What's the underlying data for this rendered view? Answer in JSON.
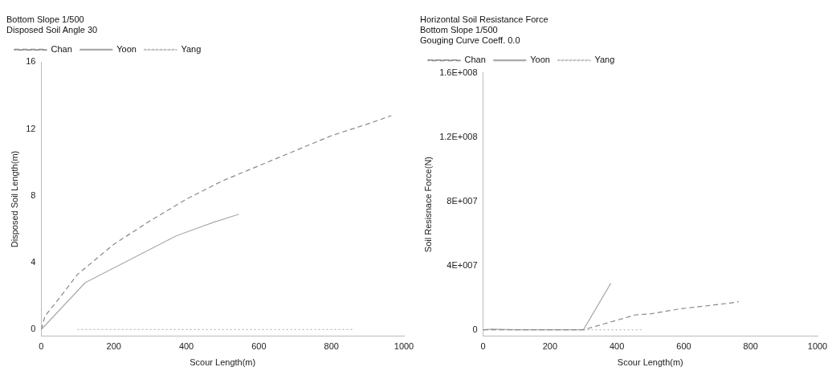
{
  "chart_data": [
    {
      "type": "line",
      "xlabel": "Scour Length(m)",
      "ylabel": "Disposed Soil Length(m)",
      "legend_title": "Bottom Slope 1/500\nDisposed Soil Angle 30",
      "legend": "top left",
      "xlim": [
        0,
        1000
      ],
      "xticks": [
        0,
        200,
        400,
        600,
        800,
        1000
      ],
      "ylim": [
        -0.4,
        16
      ],
      "yticks": [
        0,
        4,
        8,
        12,
        16
      ],
      "grid": false,
      "marker": "none",
      "series": [
        {
          "name": "Chan",
          "color": "#888888",
          "line_style": "dashed",
          "x": [
            0,
            10,
            40,
            100,
            200,
            300,
            400,
            500,
            600,
            700,
            800,
            900,
            965
          ],
          "values": [
            0,
            0.8,
            1.6,
            3.3,
            5.1,
            6.5,
            7.8,
            8.9,
            9.8,
            10.7,
            11.6,
            12.3,
            12.8
          ]
        },
        {
          "name": "Yoon",
          "color": "#aaaaaa",
          "line_style": "solid",
          "x": [
            0,
            121,
            372,
            473,
            545
          ],
          "values": [
            0,
            2.8,
            5.6,
            6.4,
            6.9
          ]
        },
        {
          "name": "Yang",
          "color": "#bbbbbb",
          "line_style": "dotted",
          "x": [
            100,
            300,
            500,
            550,
            860
          ],
          "values": [
            0,
            0,
            0,
            0,
            0
          ]
        }
      ]
    },
    {
      "type": "line",
      "title": "Horizontal Soil Resistance Force",
      "xlabel": "Scour Length(m)",
      "ylabel": "Soil Resisnace Force(N)",
      "legend_title": "Bottom Slope 1/500\nGouging Curve Coeff. 0.0",
      "legend": "top left",
      "xlim": [
        0,
        1000
      ],
      "xticks": [
        0,
        200,
        400,
        600,
        800,
        1000
      ],
      "ylim": [
        -4000000,
        160000000
      ],
      "yticks": [
        {
          "value": 0,
          "label": "0"
        },
        {
          "value": 40000000,
          "label": "4E+007"
        },
        {
          "value": 80000000,
          "label": "8E+007"
        },
        {
          "value": 120000000,
          "label": "1.2E+008"
        },
        {
          "value": 160000000,
          "label": "1.6E+008"
        }
      ],
      "grid": false,
      "marker": "none",
      "series": [
        {
          "name": "Chan",
          "color": "#888888",
          "line_style": "dashed",
          "x": [
            0,
            100,
            200,
            300,
            457,
            504,
            589,
            735,
            764
          ],
          "values": [
            0,
            0,
            0,
            0,
            9300000,
            10000000,
            13000000,
            16500000,
            17500000
          ]
        },
        {
          "name": "Yoon",
          "color": "#aaaaaa",
          "line_style": "solid",
          "x": [
            0,
            25,
            100,
            300,
            382
          ],
          "values": [
            0,
            400000,
            0,
            0,
            29000000
          ]
        },
        {
          "name": "Yang",
          "color": "#bbbbbb",
          "line_style": "dotted",
          "x": [
            0,
            200,
            480
          ],
          "values": [
            0,
            0,
            0
          ]
        }
      ]
    }
  ]
}
